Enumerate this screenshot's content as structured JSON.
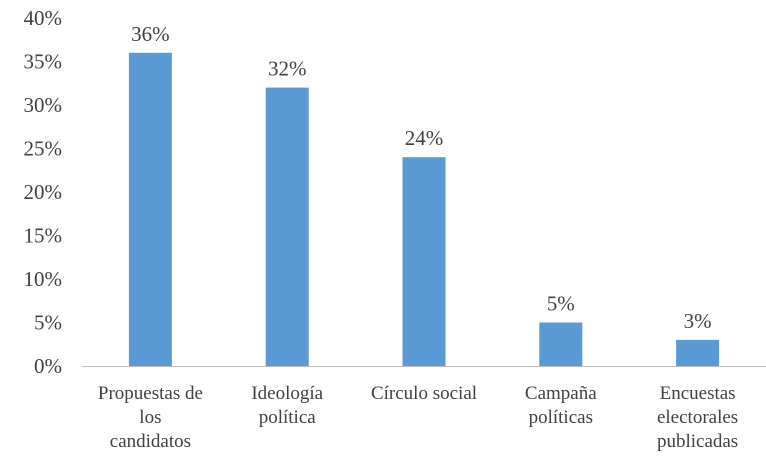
{
  "chart_data": {
    "type": "bar",
    "categories": [
      [
        "Propuestas de",
        "los",
        "candidatos"
      ],
      [
        "Ideología",
        "política"
      ],
      [
        "Círculo social"
      ],
      [
        "Campaña",
        "políticas"
      ],
      [
        "Encuestas",
        "electorales",
        "publicadas"
      ]
    ],
    "values": [
      36,
      32,
      24,
      5,
      3
    ],
    "data_labels": [
      "36%",
      "32%",
      "24%",
      "5%",
      "3%"
    ],
    "ylim": [
      0,
      40
    ],
    "y_ticks": [
      "0%",
      "5%",
      "10%",
      "15%",
      "20%",
      "25%",
      "30%",
      "35%",
      "40%"
    ],
    "title": "",
    "xlabel": "",
    "ylabel": "",
    "grid": false,
    "legend": "none",
    "colors": {
      "bar": "#5B9BD5",
      "axis": "#bfbfbf",
      "text": "#404040"
    }
  }
}
